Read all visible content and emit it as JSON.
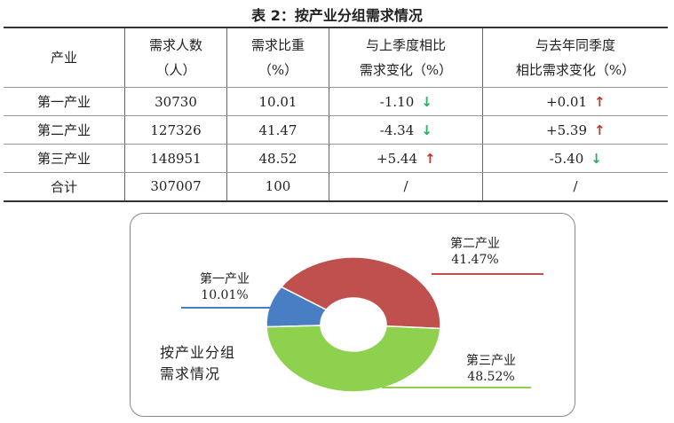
{
  "title": "表 2：按产业分组需求情况",
  "table": {
    "headers": [
      [
        "产业"
      ],
      [
        "需求人数",
        "（人）"
      ],
      [
        "需求比重",
        "（%）"
      ],
      [
        "与上季度相比",
        "需求变化（%）"
      ],
      [
        "与去年同季度",
        "相比需求变化（%）"
      ]
    ],
    "rows": [
      {
        "industry": "第一产业",
        "count": "30730",
        "share": "10.01",
        "qoq": "-1.10",
        "qoq_dir": "down",
        "yoy": "+0.01",
        "yoy_dir": "up"
      },
      {
        "industry": "第二产业",
        "count": "127326",
        "share": "41.47",
        "qoq": "-4.34",
        "qoq_dir": "down",
        "yoy": "+5.39",
        "yoy_dir": "up"
      },
      {
        "industry": "第三产业",
        "count": "148951",
        "share": "48.52",
        "qoq": "+5.44",
        "qoq_dir": "up",
        "yoy": "-5.40",
        "yoy_dir": "down"
      }
    ],
    "total": {
      "label": "合计",
      "count": "307007",
      "share": "100",
      "qoq": "/",
      "yoy": "/"
    }
  },
  "icons": {
    "up": "↑",
    "down": "↓"
  },
  "colors": {
    "primary": "#4a7ec4",
    "secondary": "#c0504d",
    "tertiary": "#8ed14f",
    "up_arrow": "#c0392b",
    "down_arrow": "#27ae60"
  },
  "chart_data": {
    "type": "pie",
    "style": "donut",
    "title": "按产业分组需求情况",
    "title_lines": [
      "按产业分组",
      "需求情况"
    ],
    "categories": [
      "第一产业",
      "第二产业",
      "第三产业"
    ],
    "values": [
      10.01,
      41.47,
      48.52
    ],
    "labels": [
      "10.01%",
      "41.47%",
      "48.52%"
    ],
    "colors": [
      "#4a7ec4",
      "#c0504d",
      "#8ed14f"
    ]
  }
}
